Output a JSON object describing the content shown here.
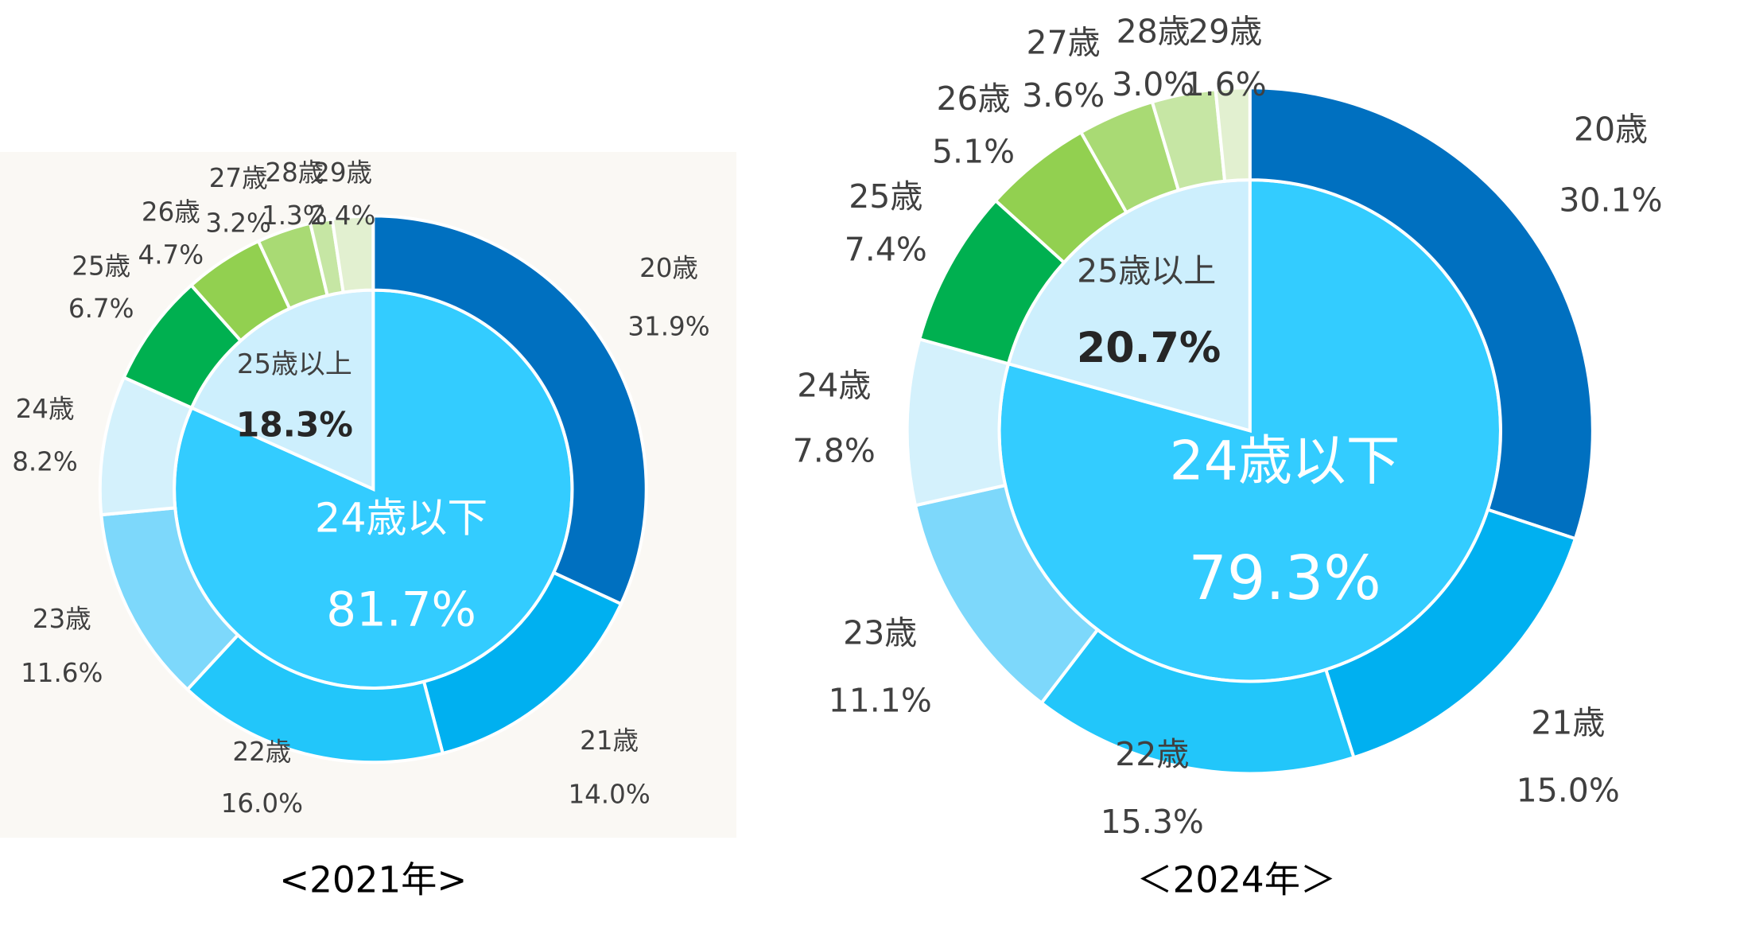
{
  "chart_data": [
    {
      "type": "donut",
      "title": "<2021年>",
      "rings": [
        {
          "categories": [
            "24歳以下",
            "25歳以上"
          ],
          "values": [
            81.7,
            18.3
          ],
          "value_labels": [
            "81.7%",
            "18.3%"
          ],
          "colors": [
            "#33CCFF",
            "#CDEFFD"
          ]
        },
        {
          "categories": [
            "20歳",
            "21歳",
            "22歳",
            "23歳",
            "24歳",
            "25歳",
            "26歳",
            "27歳",
            "28歳",
            "29歳"
          ],
          "values": [
            31.9,
            14.0,
            16.0,
            11.6,
            8.2,
            6.7,
            4.7,
            3.2,
            1.3,
            2.4
          ],
          "value_labels": [
            "31.9%",
            "14.0%",
            "16.0%",
            "11.6%",
            "8.2%",
            "6.7%",
            "4.7%",
            "3.2%",
            "1.3%",
            "2.4%"
          ],
          "colors": [
            "#0070C0",
            "#00B0F0",
            "#22C6FA",
            "#7DD8FB",
            "#D4F1FC",
            "#00B050",
            "#92D050",
            "#A9DA74",
            "#C6E6A4",
            "#E2F0D0"
          ]
        }
      ]
    },
    {
      "type": "donut",
      "title": "＜2024年＞",
      "rings": [
        {
          "categories": [
            "24歳以下",
            "25歳以上"
          ],
          "values": [
            79.3,
            20.7
          ],
          "value_labels": [
            "79.3%",
            "20.7%"
          ],
          "colors": [
            "#33CCFF",
            "#CDEFFD"
          ]
        },
        {
          "categories": [
            "20歳",
            "21歳",
            "22歳",
            "23歳",
            "24歳",
            "25歳",
            "26歳",
            "27歳",
            "28歳",
            "29歳"
          ],
          "values": [
            30.1,
            15.0,
            15.3,
            11.1,
            7.8,
            7.4,
            5.1,
            3.6,
            3.0,
            1.6
          ],
          "value_labels": [
            "30.1%",
            "15.0%",
            "15.3%",
            "11.1%",
            "7.8%",
            "7.4%",
            "5.1%",
            "3.6%",
            "3.0%",
            "1.6%"
          ],
          "colors": [
            "#0070C0",
            "#00B0F0",
            "#22C6FA",
            "#7DD8FB",
            "#D4F1FC",
            "#00B050",
            "#92D050",
            "#A9DA74",
            "#C6E6A4",
            "#E2F0D0"
          ]
        }
      ]
    }
  ]
}
